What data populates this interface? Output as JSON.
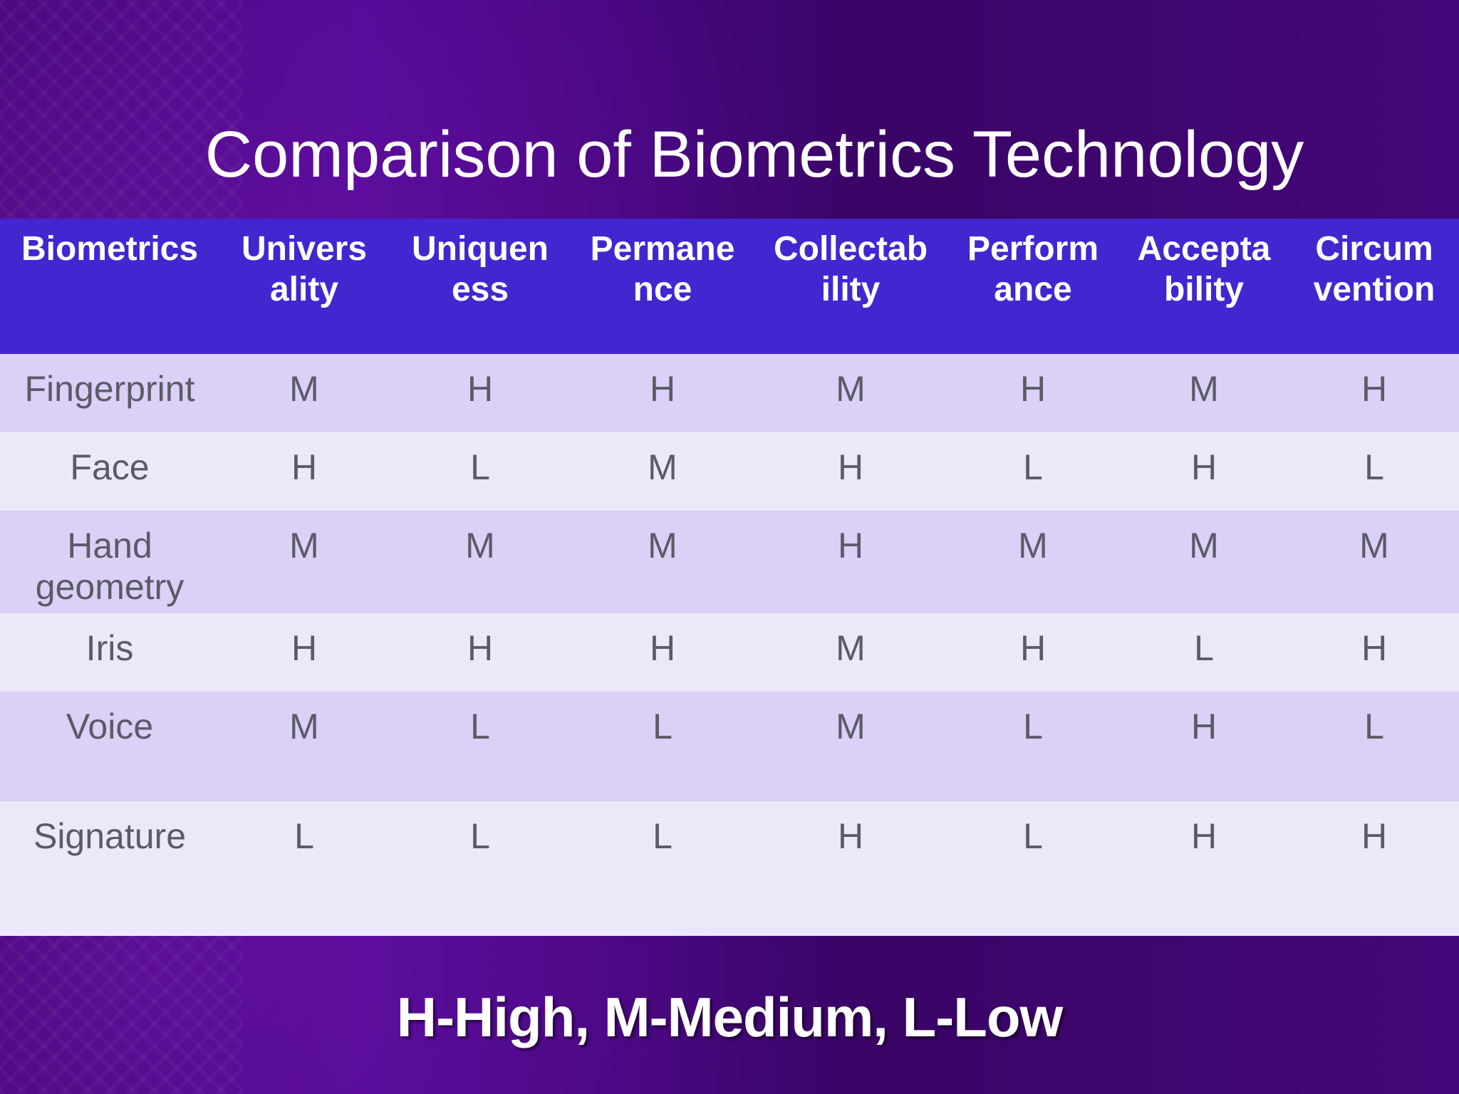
{
  "slide": {
    "title": "Comparison of Biometrics Technology",
    "legend": "H-High, M-Medium, L-Low"
  },
  "table": {
    "headers": [
      [
        "Biometrics",
        ""
      ],
      [
        "Univers",
        "ality"
      ],
      [
        "Uniquen",
        "ess"
      ],
      [
        "Permane",
        "nce"
      ],
      [
        "Collectab",
        "ility"
      ],
      [
        "Perform",
        "ance"
      ],
      [
        "Accepta",
        "bility"
      ],
      [
        "Circum",
        "vention"
      ]
    ],
    "rows": [
      {
        "name": [
          "Fingerprint",
          ""
        ],
        "values": [
          "M",
          "H",
          "H",
          "M",
          "H",
          "M",
          "H"
        ]
      },
      {
        "name": [
          "Face",
          ""
        ],
        "values": [
          "H",
          "L",
          "M",
          "H",
          "L",
          "H",
          "L"
        ]
      },
      {
        "name": [
          "Hand",
          "geometry"
        ],
        "values": [
          "M",
          "M",
          "M",
          "H",
          "M",
          "M",
          "M"
        ]
      },
      {
        "name": [
          "Iris",
          ""
        ],
        "values": [
          "H",
          "H",
          "H",
          "M",
          "H",
          "L",
          "H"
        ]
      },
      {
        "name": [
          "Voice",
          ""
        ],
        "values": [
          "M",
          "L",
          "L",
          "M",
          "L",
          "H",
          "L"
        ]
      },
      {
        "name": [
          "Signature",
          ""
        ],
        "values": [
          "L",
          "L",
          "L",
          "H",
          "L",
          "H",
          "H"
        ]
      }
    ]
  }
}
